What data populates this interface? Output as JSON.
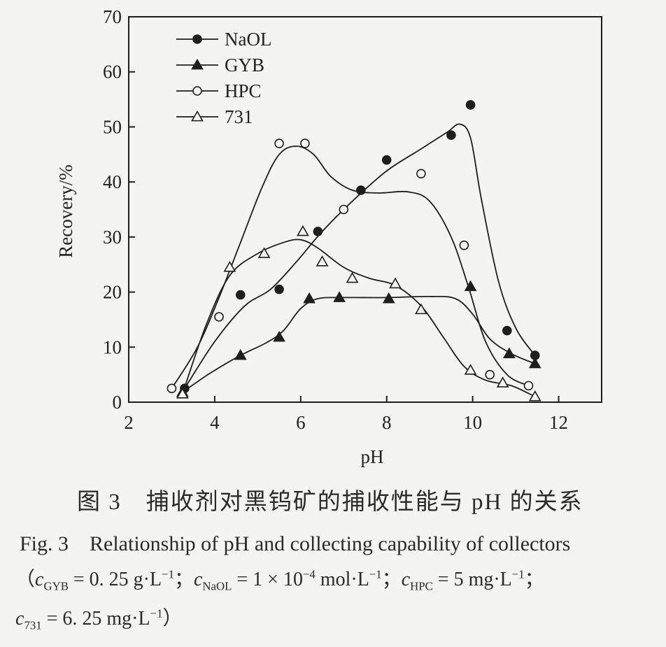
{
  "chart_data": {
    "type": "line",
    "xlabel": "pH",
    "ylabel": "Recovery/%",
    "xlim": [
      2,
      13
    ],
    "ylim": [
      0,
      70
    ],
    "xticks": [
      2,
      4,
      6,
      8,
      10,
      12
    ],
    "yticks": [
      0,
      10,
      20,
      30,
      40,
      50,
      60,
      70
    ],
    "legend_position": "top-left",
    "grid": false,
    "series": [
      {
        "name": "NaOL",
        "marker": "filled-circle",
        "points": [
          [
            3.3,
            2.5
          ],
          [
            4.6,
            19.5
          ],
          [
            5.5,
            20.5
          ],
          [
            6.4,
            31
          ],
          [
            7.4,
            38.5
          ],
          [
            8.0,
            44
          ],
          [
            9.5,
            48.5
          ],
          [
            9.95,
            54
          ],
          [
            10.8,
            13
          ],
          [
            11.45,
            8.5
          ]
        ],
        "curve": [
          [
            3.3,
            2.5
          ],
          [
            4.0,
            11
          ],
          [
            4.7,
            17.5
          ],
          [
            5.3,
            20.5
          ],
          [
            5.9,
            25.5
          ],
          [
            6.5,
            31
          ],
          [
            7.2,
            36.5
          ],
          [
            8.0,
            42
          ],
          [
            8.8,
            46
          ],
          [
            9.4,
            49
          ],
          [
            9.7,
            50.5
          ],
          [
            9.95,
            48
          ],
          [
            10.2,
            37
          ],
          [
            10.6,
            22
          ],
          [
            11.0,
            13.5
          ],
          [
            11.45,
            8.5
          ]
        ]
      },
      {
        "name": "GYB",
        "marker": "filled-triangle",
        "points": [
          [
            3.25,
            1.8
          ],
          [
            4.6,
            8.5
          ],
          [
            5.5,
            11.8
          ],
          [
            6.2,
            18.8
          ],
          [
            6.9,
            19
          ],
          [
            8.05,
            18.8
          ],
          [
            9.95,
            21
          ],
          [
            10.85,
            8.8
          ],
          [
            11.45,
            7
          ]
        ],
        "curve": [
          [
            3.25,
            1.8
          ],
          [
            3.9,
            5.3
          ],
          [
            4.6,
            8.5
          ],
          [
            5.2,
            10.8
          ],
          [
            5.6,
            13
          ],
          [
            6.0,
            17
          ],
          [
            6.4,
            18.8
          ],
          [
            7.0,
            19
          ],
          [
            8.0,
            19
          ],
          [
            9.0,
            19.2
          ],
          [
            9.6,
            18.8
          ],
          [
            10.0,
            16
          ],
          [
            10.4,
            11.5
          ],
          [
            10.9,
            8.8
          ],
          [
            11.45,
            7
          ]
        ]
      },
      {
        "name": "HPC",
        "marker": "open-circle",
        "points": [
          [
            3.0,
            2.5
          ],
          [
            4.1,
            15.5
          ],
          [
            5.5,
            47
          ],
          [
            6.1,
            47
          ],
          [
            7.0,
            35
          ],
          [
            8.8,
            41.5
          ],
          [
            9.8,
            28.5
          ],
          [
            10.4,
            5
          ],
          [
            11.3,
            3
          ]
        ],
        "curve": [
          [
            3.0,
            2.5
          ],
          [
            3.6,
            10
          ],
          [
            4.1,
            19
          ],
          [
            4.6,
            29
          ],
          [
            5.1,
            39
          ],
          [
            5.5,
            45
          ],
          [
            5.9,
            46.5
          ],
          [
            6.3,
            45
          ],
          [
            6.7,
            41
          ],
          [
            7.2,
            38.5
          ],
          [
            7.8,
            38
          ],
          [
            8.5,
            38.2
          ],
          [
            9.0,
            36.5
          ],
          [
            9.5,
            30
          ],
          [
            9.9,
            21
          ],
          [
            10.3,
            11
          ],
          [
            10.8,
            5
          ],
          [
            11.3,
            3
          ]
        ]
      },
      {
        "name": "731",
        "marker": "open-triangle",
        "points": [
          [
            3.25,
            1.5
          ],
          [
            4.35,
            24.5
          ],
          [
            5.15,
            27
          ],
          [
            6.05,
            31
          ],
          [
            6.5,
            25.5
          ],
          [
            7.2,
            22.5
          ],
          [
            8.2,
            21.5
          ],
          [
            8.8,
            16.8
          ],
          [
            9.95,
            5.8
          ],
          [
            10.7,
            3.5
          ],
          [
            11.45,
            1
          ]
        ],
        "curve": [
          [
            3.25,
            1.5
          ],
          [
            3.8,
            14
          ],
          [
            4.35,
            23
          ],
          [
            5.0,
            27
          ],
          [
            5.6,
            29
          ],
          [
            6.0,
            29.5
          ],
          [
            6.4,
            28
          ],
          [
            7.0,
            24.5
          ],
          [
            7.6,
            22.5
          ],
          [
            8.2,
            21.2
          ],
          [
            8.8,
            17.5
          ],
          [
            9.3,
            12
          ],
          [
            9.8,
            6.5
          ],
          [
            10.3,
            4
          ],
          [
            10.9,
            3
          ],
          [
            11.45,
            1
          ]
        ]
      }
    ]
  },
  "captions": {
    "cn": "图 3　捕收剂对黑钨矿的捕收性能与 pH 的关系",
    "en": "Fig. 3　Relationship of pH and collecting capability of collectors",
    "open_paren": "（",
    "c": "c",
    "sub_gyb": "GYB",
    "val_gyb": " = 0. 25 g·L",
    "sub_naol": "NaOL",
    "val_naol": " = 1 × 10",
    "exp_naol": "−4",
    "unit_naol": " mol·L",
    "sub_hpc": "HPC",
    "val_hpc": " = 5 mg·L",
    "sub_731": "731",
    "val_731": " = 6. 25 mg·L",
    "neg1": "−1",
    "semicolon": "；",
    "close_paren": "）"
  },
  "colors": {
    "ink": "#1e1e1e",
    "background": "#f4f4f1"
  }
}
